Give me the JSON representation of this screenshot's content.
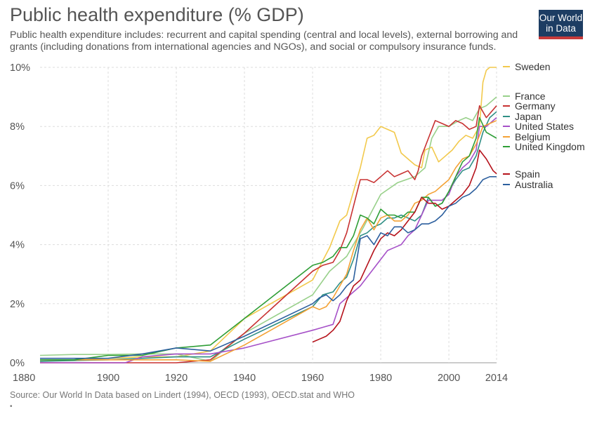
{
  "header": {
    "title": "Public health expenditure (% GDP)",
    "subtitle": "Public health expenditure includes: recurrent and capital spending (central and local levels), external borrowing and grants (including donations from international agencies and NGOs), and social or compulsory insurance funds."
  },
  "logo": {
    "line1": "Our World",
    "line2": "in Data"
  },
  "footer": {
    "source": "Source: Our World In Data based on Lindert (1994), OECD (1993), OECD.stat and WHO",
    "dot": "•"
  },
  "chart_data": {
    "type": "line",
    "title": "Public health expenditure (% GDP)",
    "xlabel": "",
    "ylabel": "",
    "xlim": [
      1880,
      2014
    ],
    "ylim": [
      0,
      10
    ],
    "x_ticks": [
      1880,
      1900,
      1920,
      1940,
      1960,
      1980,
      2000,
      2014
    ],
    "x_tick_labels": [
      "1880",
      "1900",
      "1920",
      "1940",
      "1960",
      "1980",
      "2000",
      "2014"
    ],
    "y_ticks": [
      0,
      2,
      4,
      6,
      8,
      10
    ],
    "y_tick_labels": [
      "0%",
      "2%",
      "4%",
      "6%",
      "8%",
      "10%"
    ],
    "grid": true,
    "legend_position": "right",
    "series": [
      {
        "name": "Sweden",
        "color": "#f2c94c",
        "points": [
          [
            1880,
            0.05
          ],
          [
            1900,
            0.15
          ],
          [
            1910,
            0.2
          ],
          [
            1920,
            0.2
          ],
          [
            1930,
            0.4
          ],
          [
            1940,
            1.5
          ],
          [
            1960,
            2.8
          ],
          [
            1965,
            3.9
          ],
          [
            1968,
            4.8
          ],
          [
            1970,
            5.0
          ],
          [
            1972,
            5.8
          ],
          [
            1974,
            6.6
          ],
          [
            1976,
            7.6
          ],
          [
            1978,
            7.7
          ],
          [
            1980,
            8.0
          ],
          [
            1982,
            7.9
          ],
          [
            1984,
            7.8
          ],
          [
            1986,
            7.1
          ],
          [
            1988,
            6.9
          ],
          [
            1990,
            6.7
          ],
          [
            1992,
            6.6
          ],
          [
            1993,
            7.2
          ],
          [
            1995,
            7.3
          ],
          [
            1997,
            6.8
          ],
          [
            1999,
            7.0
          ],
          [
            2001,
            7.2
          ],
          [
            2003,
            7.5
          ],
          [
            2005,
            7.7
          ],
          [
            2007,
            7.6
          ],
          [
            2009,
            8.0
          ],
          [
            2010,
            9.5
          ],
          [
            2011,
            9.9
          ],
          [
            2012,
            10.0
          ],
          [
            2014,
            10.0
          ]
        ]
      },
      {
        "name": "France",
        "color": "#98d08a",
        "points": [
          [
            1880,
            0.25
          ],
          [
            1890,
            0.28
          ],
          [
            1900,
            0.28
          ],
          [
            1910,
            0.3
          ],
          [
            1920,
            0.3
          ],
          [
            1930,
            0.05
          ],
          [
            1940,
            1.0
          ],
          [
            1960,
            2.3
          ],
          [
            1965,
            3.1
          ],
          [
            1970,
            3.6
          ],
          [
            1975,
            4.6
          ],
          [
            1980,
            5.7
          ],
          [
            1985,
            6.1
          ],
          [
            1990,
            6.3
          ],
          [
            1993,
            6.6
          ],
          [
            1995,
            7.6
          ],
          [
            1997,
            8.0
          ],
          [
            2000,
            8.0
          ],
          [
            2003,
            8.2
          ],
          [
            2005,
            8.3
          ],
          [
            2007,
            8.2
          ],
          [
            2009,
            8.6
          ],
          [
            2011,
            8.7
          ],
          [
            2014,
            9.0
          ]
        ]
      },
      {
        "name": "Germany",
        "color": "#c83232",
        "points": [
          [
            1880,
            0.0
          ],
          [
            1900,
            0.0
          ],
          [
            1920,
            0.0
          ],
          [
            1930,
            0.1
          ],
          [
            1940,
            1.0
          ],
          [
            1960,
            3.1
          ],
          [
            1963,
            3.3
          ],
          [
            1966,
            3.4
          ],
          [
            1968,
            3.8
          ],
          [
            1970,
            4.4
          ],
          [
            1972,
            5.3
          ],
          [
            1974,
            6.2
          ],
          [
            1976,
            6.2
          ],
          [
            1978,
            6.1
          ],
          [
            1980,
            6.3
          ],
          [
            1982,
            6.5
          ],
          [
            1984,
            6.3
          ],
          [
            1986,
            6.4
          ],
          [
            1988,
            6.5
          ],
          [
            1990,
            6.2
          ],
          [
            1991,
            6.5
          ],
          [
            1992,
            7.0
          ],
          [
            1994,
            7.6
          ],
          [
            1996,
            8.2
          ],
          [
            1998,
            8.1
          ],
          [
            2000,
            8.0
          ],
          [
            2002,
            8.2
          ],
          [
            2004,
            8.1
          ],
          [
            2006,
            7.9
          ],
          [
            2008,
            8.0
          ],
          [
            2009,
            8.7
          ],
          [
            2011,
            8.3
          ],
          [
            2014,
            8.7
          ]
        ]
      },
      {
        "name": "Japan",
        "color": "#2f8f85",
        "points": [
          [
            1880,
            0.05
          ],
          [
            1900,
            0.1
          ],
          [
            1920,
            0.2
          ],
          [
            1930,
            0.2
          ],
          [
            1940,
            0.8
          ],
          [
            1960,
            1.9
          ],
          [
            1963,
            2.3
          ],
          [
            1966,
            2.4
          ],
          [
            1968,
            2.7
          ],
          [
            1970,
            2.9
          ],
          [
            1972,
            3.5
          ],
          [
            1974,
            4.3
          ],
          [
            1976,
            4.4
          ],
          [
            1978,
            4.6
          ],
          [
            1980,
            4.7
          ],
          [
            1982,
            4.9
          ],
          [
            1984,
            4.9
          ],
          [
            1986,
            5.0
          ],
          [
            1988,
            4.9
          ],
          [
            1990,
            4.8
          ],
          [
            1992,
            5.0
          ],
          [
            1994,
            5.6
          ],
          [
            1996,
            5.3
          ],
          [
            1998,
            5.4
          ],
          [
            2000,
            5.8
          ],
          [
            2002,
            6.2
          ],
          [
            2004,
            6.5
          ],
          [
            2006,
            6.6
          ],
          [
            2008,
            7.0
          ],
          [
            2010,
            7.8
          ],
          [
            2012,
            8.3
          ],
          [
            2014,
            8.5
          ]
        ]
      },
      {
        "name": "United States",
        "color": "#a651c8",
        "points": [
          [
            1880,
            0.0
          ],
          [
            1900,
            0.0
          ],
          [
            1905,
            0.0
          ],
          [
            1910,
            0.2
          ],
          [
            1920,
            0.3
          ],
          [
            1930,
            0.3
          ],
          [
            1940,
            0.5
          ],
          [
            1960,
            1.1
          ],
          [
            1963,
            1.2
          ],
          [
            1966,
            1.3
          ],
          [
            1968,
            2.0
          ],
          [
            1970,
            2.2
          ],
          [
            1972,
            2.4
          ],
          [
            1974,
            2.6
          ],
          [
            1976,
            2.9
          ],
          [
            1978,
            3.2
          ],
          [
            1980,
            3.5
          ],
          [
            1982,
            3.8
          ],
          [
            1984,
            3.9
          ],
          [
            1986,
            4.0
          ],
          [
            1988,
            4.3
          ],
          [
            1990,
            4.5
          ],
          [
            1992,
            5.0
          ],
          [
            1994,
            5.5
          ],
          [
            1996,
            5.5
          ],
          [
            1998,
            5.5
          ],
          [
            2000,
            5.7
          ],
          [
            2002,
            6.3
          ],
          [
            2004,
            6.6
          ],
          [
            2006,
            6.8
          ],
          [
            2008,
            7.2
          ],
          [
            2009,
            8.0
          ],
          [
            2011,
            8.0
          ],
          [
            2014,
            8.3
          ]
        ]
      },
      {
        "name": "Belgium",
        "color": "#f4a235",
        "points": [
          [
            1880,
            0.1
          ],
          [
            1900,
            0.1
          ],
          [
            1920,
            0.1
          ],
          [
            1930,
            0.05
          ],
          [
            1940,
            0.6
          ],
          [
            1960,
            1.9
          ],
          [
            1962,
            1.8
          ],
          [
            1964,
            1.9
          ],
          [
            1966,
            2.2
          ],
          [
            1968,
            2.6
          ],
          [
            1970,
            3.0
          ],
          [
            1972,
            3.8
          ],
          [
            1974,
            4.5
          ],
          [
            1976,
            4.9
          ],
          [
            1978,
            4.5
          ],
          [
            1980,
            4.9
          ],
          [
            1982,
            5.0
          ],
          [
            1984,
            4.8
          ],
          [
            1986,
            4.8
          ],
          [
            1988,
            5.0
          ],
          [
            1990,
            5.4
          ],
          [
            1992,
            5.5
          ],
          [
            1994,
            5.7
          ],
          [
            1996,
            5.8
          ],
          [
            1998,
            6.0
          ],
          [
            2000,
            6.2
          ],
          [
            2002,
            6.6
          ],
          [
            2004,
            6.9
          ],
          [
            2006,
            7.0
          ],
          [
            2008,
            7.4
          ],
          [
            2010,
            8.0
          ],
          [
            2012,
            8.1
          ],
          [
            2014,
            8.2
          ]
        ]
      },
      {
        "name": "United Kingdom",
        "color": "#2e9e36",
        "points": [
          [
            1880,
            0.1
          ],
          [
            1890,
            0.1
          ],
          [
            1900,
            0.25
          ],
          [
            1910,
            0.25
          ],
          [
            1920,
            0.5
          ],
          [
            1930,
            0.6
          ],
          [
            1940,
            1.5
          ],
          [
            1960,
            3.3
          ],
          [
            1963,
            3.4
          ],
          [
            1966,
            3.6
          ],
          [
            1968,
            3.9
          ],
          [
            1970,
            3.9
          ],
          [
            1972,
            4.3
          ],
          [
            1974,
            5.0
          ],
          [
            1976,
            4.9
          ],
          [
            1978,
            4.7
          ],
          [
            1980,
            5.2
          ],
          [
            1982,
            5.0
          ],
          [
            1984,
            5.0
          ],
          [
            1986,
            4.9
          ],
          [
            1988,
            5.1
          ],
          [
            1990,
            5.1
          ],
          [
            1992,
            5.6
          ],
          [
            1994,
            5.6
          ],
          [
            1996,
            5.3
          ],
          [
            1998,
            5.4
          ],
          [
            2000,
            5.8
          ],
          [
            2002,
            6.3
          ],
          [
            2004,
            6.8
          ],
          [
            2006,
            7.0
          ],
          [
            2008,
            7.6
          ],
          [
            2009,
            8.3
          ],
          [
            2011,
            7.8
          ],
          [
            2014,
            7.6
          ]
        ]
      },
      {
        "name": "Spain",
        "color": "#b5121b",
        "points": [
          [
            1960,
            0.7
          ],
          [
            1962,
            0.8
          ],
          [
            1964,
            0.9
          ],
          [
            1966,
            1.1
          ],
          [
            1968,
            1.4
          ],
          [
            1970,
            2.1
          ],
          [
            1972,
            2.6
          ],
          [
            1974,
            2.8
          ],
          [
            1976,
            3.3
          ],
          [
            1978,
            3.8
          ],
          [
            1980,
            4.2
          ],
          [
            1982,
            4.4
          ],
          [
            1984,
            4.3
          ],
          [
            1986,
            4.5
          ],
          [
            1988,
            4.8
          ],
          [
            1990,
            5.1
          ],
          [
            1992,
            5.6
          ],
          [
            1994,
            5.4
          ],
          [
            1996,
            5.4
          ],
          [
            1998,
            5.2
          ],
          [
            2000,
            5.3
          ],
          [
            2002,
            5.5
          ],
          [
            2004,
            5.7
          ],
          [
            2006,
            6.0
          ],
          [
            2008,
            6.6
          ],
          [
            2009,
            7.2
          ],
          [
            2011,
            6.9
          ],
          [
            2013,
            6.5
          ],
          [
            2014,
            6.4
          ]
        ]
      },
      {
        "name": "Australia",
        "color": "#2c5f9e",
        "points": [
          [
            1880,
            0.15
          ],
          [
            1900,
            0.15
          ],
          [
            1910,
            0.3
          ],
          [
            1920,
            0.5
          ],
          [
            1930,
            0.4
          ],
          [
            1940,
            0.9
          ],
          [
            1960,
            2.0
          ],
          [
            1962,
            2.2
          ],
          [
            1964,
            2.3
          ],
          [
            1966,
            2.1
          ],
          [
            1968,
            2.3
          ],
          [
            1970,
            2.6
          ],
          [
            1972,
            2.8
          ],
          [
            1974,
            4.2
          ],
          [
            1976,
            4.3
          ],
          [
            1978,
            4.0
          ],
          [
            1980,
            4.4
          ],
          [
            1982,
            4.3
          ],
          [
            1984,
            4.6
          ],
          [
            1986,
            4.6
          ],
          [
            1988,
            4.4
          ],
          [
            1990,
            4.5
          ],
          [
            1992,
            4.7
          ],
          [
            1994,
            4.7
          ],
          [
            1996,
            4.8
          ],
          [
            1998,
            5.0
          ],
          [
            2000,
            5.3
          ],
          [
            2002,
            5.4
          ],
          [
            2004,
            5.6
          ],
          [
            2006,
            5.7
          ],
          [
            2008,
            5.9
          ],
          [
            2010,
            6.2
          ],
          [
            2012,
            6.3
          ],
          [
            2014,
            6.3
          ]
        ]
      }
    ]
  }
}
